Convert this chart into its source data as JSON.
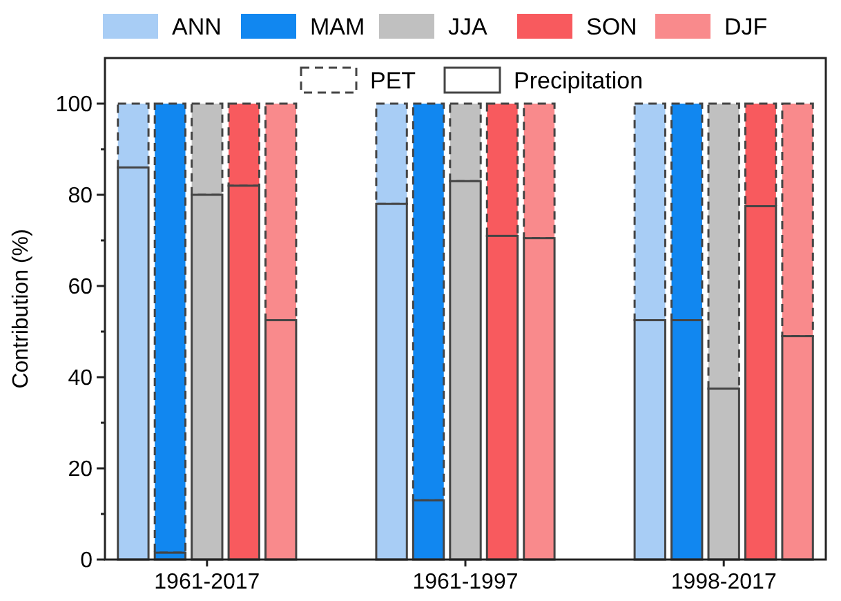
{
  "chart_data": {
    "type": "bar",
    "stacked": true,
    "ylabel": "Contribution (%)",
    "categories": [
      null,
      null,
      "1961-2017",
      null,
      null,
      null,
      null,
      null,
      null,
      "1961-1997",
      null,
      null,
      null,
      null,
      null,
      null,
      "1998-2017",
      null,
      null
    ],
    "series": [
      {
        "name": "Precipitation",
        "line_style": "solid",
        "colors": [
          "#a8cdf5",
          "#1187f0",
          "#c0c0c0",
          "#f85a5e",
          "#f98a8c",
          null,
          null,
          "#a8cdf5",
          "#1187f0",
          "#c0c0c0",
          "#f85a5e",
          "#f98a8c",
          null,
          null,
          "#a8cdf5",
          "#1187f0",
          "#c0c0c0",
          "#f85a5e",
          "#f98a8c"
        ],
        "values": [
          86,
          1.5,
          80,
          82,
          52.5,
          null,
          null,
          78,
          13,
          83,
          71,
          70.5,
          null,
          null,
          52.5,
          52.5,
          37.5,
          77.5,
          49
        ]
      },
      {
        "name": "PET",
        "line_style": "dashed",
        "colors": [
          "#a8cdf5",
          "#1187f0",
          "#c0c0c0",
          "#f85a5e",
          "#f98a8c",
          null,
          null,
          "#a8cdf5",
          "#1187f0",
          "#c0c0c0",
          "#f85a5e",
          "#f98a8c",
          null,
          null,
          "#a8cdf5",
          "#1187f0",
          "#c0c0c0",
          "#f85a5e",
          "#f98a8c"
        ],
        "values": [
          14,
          98.5,
          20,
          18,
          47.5,
          null,
          null,
          22,
          87,
          17,
          29,
          29.5,
          null,
          null,
          47.5,
          47.5,
          62.5,
          22.5,
          51
        ]
      }
    ],
    "ylim": [
      0,
      110
    ],
    "yticks": [
      0,
      {
        "value": 10,
        "label": null
      },
      20,
      {
        "value": 30,
        "label": null
      },
      40,
      {
        "value": 50,
        "label": null
      },
      60,
      {
        "value": 70,
        "label": null
      },
      80,
      {
        "value": 90,
        "label": null
      },
      100
    ],
    "annotations": [
      "ANN",
      "MAM",
      "JJA",
      "SON",
      "DJF"
    ],
    "legend": "top",
    "grid": false
  }
}
